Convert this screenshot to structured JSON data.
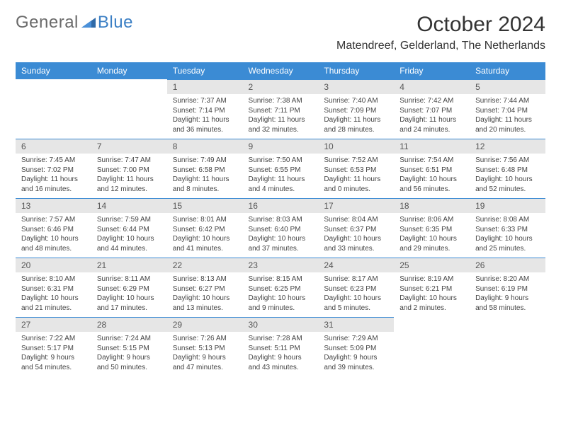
{
  "logo": {
    "general": "General",
    "blue": "Blue"
  },
  "title": "October 2024",
  "location": "Matendreef, Gelderland, The Netherlands",
  "colors": {
    "header_bg": "#3b8bd4",
    "header_text": "#ffffff",
    "daynum_bg": "#e6e6e6",
    "row_border": "#3b8bd4",
    "text": "#333333",
    "logo_gray": "#6a6a6a",
    "logo_blue": "#3b7fc4"
  },
  "day_headers": [
    "Sunday",
    "Monday",
    "Tuesday",
    "Wednesday",
    "Thursday",
    "Friday",
    "Saturday"
  ],
  "weeks": [
    [
      {
        "n": "",
        "sr": "",
        "ss": "",
        "dl": ""
      },
      {
        "n": "",
        "sr": "",
        "ss": "",
        "dl": ""
      },
      {
        "n": "1",
        "sr": "Sunrise: 7:37 AM",
        "ss": "Sunset: 7:14 PM",
        "dl": "Daylight: 11 hours and 36 minutes."
      },
      {
        "n": "2",
        "sr": "Sunrise: 7:38 AM",
        "ss": "Sunset: 7:11 PM",
        "dl": "Daylight: 11 hours and 32 minutes."
      },
      {
        "n": "3",
        "sr": "Sunrise: 7:40 AM",
        "ss": "Sunset: 7:09 PM",
        "dl": "Daylight: 11 hours and 28 minutes."
      },
      {
        "n": "4",
        "sr": "Sunrise: 7:42 AM",
        "ss": "Sunset: 7:07 PM",
        "dl": "Daylight: 11 hours and 24 minutes."
      },
      {
        "n": "5",
        "sr": "Sunrise: 7:44 AM",
        "ss": "Sunset: 7:04 PM",
        "dl": "Daylight: 11 hours and 20 minutes."
      }
    ],
    [
      {
        "n": "6",
        "sr": "Sunrise: 7:45 AM",
        "ss": "Sunset: 7:02 PM",
        "dl": "Daylight: 11 hours and 16 minutes."
      },
      {
        "n": "7",
        "sr": "Sunrise: 7:47 AM",
        "ss": "Sunset: 7:00 PM",
        "dl": "Daylight: 11 hours and 12 minutes."
      },
      {
        "n": "8",
        "sr": "Sunrise: 7:49 AM",
        "ss": "Sunset: 6:58 PM",
        "dl": "Daylight: 11 hours and 8 minutes."
      },
      {
        "n": "9",
        "sr": "Sunrise: 7:50 AM",
        "ss": "Sunset: 6:55 PM",
        "dl": "Daylight: 11 hours and 4 minutes."
      },
      {
        "n": "10",
        "sr": "Sunrise: 7:52 AM",
        "ss": "Sunset: 6:53 PM",
        "dl": "Daylight: 11 hours and 0 minutes."
      },
      {
        "n": "11",
        "sr": "Sunrise: 7:54 AM",
        "ss": "Sunset: 6:51 PM",
        "dl": "Daylight: 10 hours and 56 minutes."
      },
      {
        "n": "12",
        "sr": "Sunrise: 7:56 AM",
        "ss": "Sunset: 6:48 PM",
        "dl": "Daylight: 10 hours and 52 minutes."
      }
    ],
    [
      {
        "n": "13",
        "sr": "Sunrise: 7:57 AM",
        "ss": "Sunset: 6:46 PM",
        "dl": "Daylight: 10 hours and 48 minutes."
      },
      {
        "n": "14",
        "sr": "Sunrise: 7:59 AM",
        "ss": "Sunset: 6:44 PM",
        "dl": "Daylight: 10 hours and 44 minutes."
      },
      {
        "n": "15",
        "sr": "Sunrise: 8:01 AM",
        "ss": "Sunset: 6:42 PM",
        "dl": "Daylight: 10 hours and 41 minutes."
      },
      {
        "n": "16",
        "sr": "Sunrise: 8:03 AM",
        "ss": "Sunset: 6:40 PM",
        "dl": "Daylight: 10 hours and 37 minutes."
      },
      {
        "n": "17",
        "sr": "Sunrise: 8:04 AM",
        "ss": "Sunset: 6:37 PM",
        "dl": "Daylight: 10 hours and 33 minutes."
      },
      {
        "n": "18",
        "sr": "Sunrise: 8:06 AM",
        "ss": "Sunset: 6:35 PM",
        "dl": "Daylight: 10 hours and 29 minutes."
      },
      {
        "n": "19",
        "sr": "Sunrise: 8:08 AM",
        "ss": "Sunset: 6:33 PM",
        "dl": "Daylight: 10 hours and 25 minutes."
      }
    ],
    [
      {
        "n": "20",
        "sr": "Sunrise: 8:10 AM",
        "ss": "Sunset: 6:31 PM",
        "dl": "Daylight: 10 hours and 21 minutes."
      },
      {
        "n": "21",
        "sr": "Sunrise: 8:11 AM",
        "ss": "Sunset: 6:29 PM",
        "dl": "Daylight: 10 hours and 17 minutes."
      },
      {
        "n": "22",
        "sr": "Sunrise: 8:13 AM",
        "ss": "Sunset: 6:27 PM",
        "dl": "Daylight: 10 hours and 13 minutes."
      },
      {
        "n": "23",
        "sr": "Sunrise: 8:15 AM",
        "ss": "Sunset: 6:25 PM",
        "dl": "Daylight: 10 hours and 9 minutes."
      },
      {
        "n": "24",
        "sr": "Sunrise: 8:17 AM",
        "ss": "Sunset: 6:23 PM",
        "dl": "Daylight: 10 hours and 5 minutes."
      },
      {
        "n": "25",
        "sr": "Sunrise: 8:19 AM",
        "ss": "Sunset: 6:21 PM",
        "dl": "Daylight: 10 hours and 2 minutes."
      },
      {
        "n": "26",
        "sr": "Sunrise: 8:20 AM",
        "ss": "Sunset: 6:19 PM",
        "dl": "Daylight: 9 hours and 58 minutes."
      }
    ],
    [
      {
        "n": "27",
        "sr": "Sunrise: 7:22 AM",
        "ss": "Sunset: 5:17 PM",
        "dl": "Daylight: 9 hours and 54 minutes."
      },
      {
        "n": "28",
        "sr": "Sunrise: 7:24 AM",
        "ss": "Sunset: 5:15 PM",
        "dl": "Daylight: 9 hours and 50 minutes."
      },
      {
        "n": "29",
        "sr": "Sunrise: 7:26 AM",
        "ss": "Sunset: 5:13 PM",
        "dl": "Daylight: 9 hours and 47 minutes."
      },
      {
        "n": "30",
        "sr": "Sunrise: 7:28 AM",
        "ss": "Sunset: 5:11 PM",
        "dl": "Daylight: 9 hours and 43 minutes."
      },
      {
        "n": "31",
        "sr": "Sunrise: 7:29 AM",
        "ss": "Sunset: 5:09 PM",
        "dl": "Daylight: 9 hours and 39 minutes."
      },
      {
        "n": "",
        "sr": "",
        "ss": "",
        "dl": ""
      },
      {
        "n": "",
        "sr": "",
        "ss": "",
        "dl": ""
      }
    ]
  ]
}
